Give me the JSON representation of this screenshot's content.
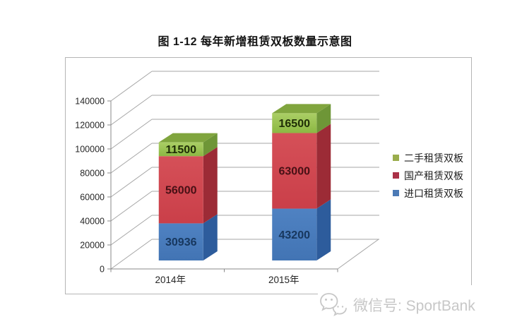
{
  "title": "图 1-12 每年新增租赁双板数量示意图",
  "chart_data": {
    "type": "bar",
    "variant": "3d-stacked-column",
    "categories": [
      "2014年",
      "2015年"
    ],
    "series": [
      {
        "name": "进口租赁双板",
        "values": [
          30936,
          43200
        ],
        "front_color": "#4f82c2",
        "front_color_dark": "#4274b4",
        "side_color": "#2d5c9c",
        "label_color": "#17375e"
      },
      {
        "name": "国产租赁双板",
        "values": [
          56000,
          63000
        ],
        "front_color": "#d55058",
        "front_color_dark": "#ca3f49",
        "side_color": "#9c2b36",
        "label_color": "#471015"
      },
      {
        "name": "二手租赁双板",
        "values": [
          11500,
          16500
        ],
        "front_color": "#aace65",
        "front_color_dark": "#8cb843",
        "side_color": "#6e9637",
        "top_color": "#80a53e",
        "label_color": "#1f2d06"
      }
    ],
    "ylim": [
      0,
      140000
    ],
    "ytick_interval": 20000,
    "yticks": [
      "0",
      "20000",
      "40000",
      "60000",
      "80000",
      "100000",
      "120000",
      "140000"
    ],
    "grid": true,
    "legend": {
      "position": "right",
      "items": [
        {
          "label": "二手租赁双板",
          "color": "#9aad4c"
        },
        {
          "label": "国产租赁双板",
          "color": "#aa3147"
        },
        {
          "label": "进口租赁双板",
          "color": "#4b7ab6"
        }
      ]
    }
  },
  "watermark": {
    "icon": "wechat-icon",
    "text": "微信号: SportBank",
    "color": "#c7c7c7"
  }
}
